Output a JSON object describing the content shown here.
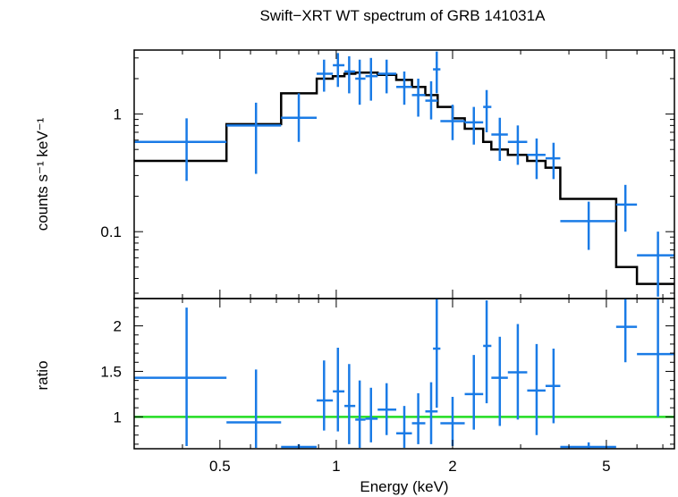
{
  "chart_data": [
    {
      "type": "scatter",
      "title": "Swift−XRT WT spectrum of GRB 141031A",
      "xlabel": "",
      "ylabel": "counts s⁻¹ keV⁻¹",
      "xscale": "log",
      "yscale": "log",
      "xlim": [
        0.3,
        7.5
      ],
      "ylim": [
        0.027,
        3.5
      ],
      "y_ticks": [
        0.1,
        1
      ],
      "y_tick_labels": [
        "0.1",
        "1"
      ],
      "colors": {
        "data": "#1a7be6",
        "model": "#000000"
      },
      "series": [
        {
          "style": "errorbar",
          "points": [
            {
              "x": 0.41,
              "xlo": 0.3,
              "xhi": 0.52,
              "y": 0.58,
              "ylo": 0.27,
              "yhi": 0.92
            },
            {
              "x": 0.62,
              "xlo": 0.52,
              "xhi": 0.72,
              "y": 0.8,
              "ylo": 0.31,
              "yhi": 1.25
            },
            {
              "x": 0.8,
              "xlo": 0.72,
              "xhi": 0.89,
              "y": 0.93,
              "ylo": 0.58,
              "yhi": 1.5
            },
            {
              "x": 0.93,
              "xlo": 0.89,
              "xhi": 0.98,
              "y": 2.2,
              "ylo": 1.55,
              "yhi": 2.9
            },
            {
              "x": 1.01,
              "xlo": 0.98,
              "xhi": 1.05,
              "y": 2.6,
              "ylo": 1.7,
              "yhi": 3.3
            },
            {
              "x": 1.08,
              "xlo": 1.05,
              "xhi": 1.12,
              "y": 2.3,
              "ylo": 1.5,
              "yhi": 3.1
            },
            {
              "x": 1.15,
              "xlo": 1.12,
              "xhi": 1.19,
              "y": 2.0,
              "ylo": 1.2,
              "yhi": 2.9
            },
            {
              "x": 1.23,
              "xlo": 1.19,
              "xhi": 1.28,
              "y": 2.1,
              "ylo": 1.3,
              "yhi": 3.0
            },
            {
              "x": 1.35,
              "xlo": 1.28,
              "xhi": 1.43,
              "y": 2.2,
              "ylo": 1.5,
              "yhi": 2.9
            },
            {
              "x": 1.5,
              "xlo": 1.43,
              "xhi": 1.57,
              "y": 1.7,
              "ylo": 1.2,
              "yhi": 2.3
            },
            {
              "x": 1.63,
              "xlo": 1.57,
              "xhi": 1.7,
              "y": 1.45,
              "ylo": 0.95,
              "yhi": 2.0
            },
            {
              "x": 1.76,
              "xlo": 1.7,
              "xhi": 1.83,
              "y": 1.3,
              "ylo": 0.9,
              "yhi": 1.9
            },
            {
              "x": 1.82,
              "xlo": 1.78,
              "xhi": 1.86,
              "y": 2.4,
              "ylo": 1.5,
              "yhi": 3.4
            },
            {
              "x": 2.0,
              "xlo": 1.86,
              "xhi": 2.15,
              "y": 0.87,
              "ylo": 0.6,
              "yhi": 1.2
            },
            {
              "x": 2.27,
              "xlo": 2.15,
              "xhi": 2.4,
              "y": 0.85,
              "ylo": 0.55,
              "yhi": 1.15
            },
            {
              "x": 2.45,
              "xlo": 2.4,
              "xhi": 2.52,
              "y": 1.15,
              "ylo": 0.7,
              "yhi": 1.6
            },
            {
              "x": 2.65,
              "xlo": 2.52,
              "xhi": 2.78,
              "y": 0.67,
              "ylo": 0.4,
              "yhi": 0.93
            },
            {
              "x": 2.95,
              "xlo": 2.78,
              "xhi": 3.12,
              "y": 0.58,
              "ylo": 0.37,
              "yhi": 0.8
            },
            {
              "x": 3.3,
              "xlo": 3.12,
              "xhi": 3.48,
              "y": 0.45,
              "ylo": 0.28,
              "yhi": 0.62
            },
            {
              "x": 3.65,
              "xlo": 3.48,
              "xhi": 3.8,
              "y": 0.42,
              "ylo": 0.28,
              "yhi": 0.57
            },
            {
              "x": 4.5,
              "xlo": 3.8,
              "xhi": 5.3,
              "y": 0.123,
              "ylo": 0.07,
              "yhi": 0.18
            },
            {
              "x": 5.6,
              "xlo": 5.3,
              "xhi": 6.0,
              "y": 0.17,
              "ylo": 0.1,
              "yhi": 0.25
            },
            {
              "x": 6.8,
              "xlo": 6.0,
              "xhi": 7.5,
              "y": 0.063,
              "ylo": 0.028,
              "yhi": 0.1
            }
          ]
        },
        {
          "style": "step",
          "edges": [
            0.3,
            0.52,
            0.72,
            0.89,
            0.98,
            1.05,
            1.12,
            1.19,
            1.28,
            1.43,
            1.57,
            1.7,
            1.83,
            2.0,
            2.15,
            2.4,
            2.52,
            2.78,
            3.12,
            3.48,
            3.8,
            5.3,
            6.0,
            7.5
          ],
          "values": [
            0.4,
            0.82,
            1.5,
            2.0,
            2.1,
            2.2,
            2.25,
            2.25,
            2.15,
            1.95,
            1.7,
            1.45,
            1.15,
            0.92,
            0.75,
            0.58,
            0.5,
            0.45,
            0.4,
            0.35,
            0.19,
            0.05,
            0.036
          ]
        }
      ]
    },
    {
      "type": "scatter",
      "xlabel": "Energy (keV)",
      "ylabel": "ratio",
      "xscale": "log",
      "yscale": "linear",
      "xlim": [
        0.3,
        7.5
      ],
      "ylim": [
        0.65,
        2.3
      ],
      "x_ticks": [
        0.5,
        1,
        2,
        5
      ],
      "x_tick_labels": [
        "0.5",
        "1",
        "2",
        "5"
      ],
      "y_ticks": [
        1,
        1.5,
        2
      ],
      "y_tick_labels": [
        "1",
        "1.5",
        "2"
      ],
      "reference_line": 1,
      "colors": {
        "data": "#1a7be6",
        "reference": "#22dd22"
      },
      "series": [
        {
          "style": "errorbar",
          "points": [
            {
              "x": 0.41,
              "xlo": 0.3,
              "xhi": 0.52,
              "y": 1.43,
              "ylo": 0.68,
              "yhi": 2.2
            },
            {
              "x": 0.62,
              "xlo": 0.52,
              "xhi": 0.72,
              "y": 0.94,
              "ylo": 0.66,
              "yhi": 1.52
            },
            {
              "x": 0.8,
              "xlo": 0.72,
              "xhi": 0.89,
              "y": 0.67,
              "ylo": 0.65,
              "yhi": 0.7
            },
            {
              "x": 0.93,
              "xlo": 0.89,
              "xhi": 0.98,
              "y": 1.18,
              "ylo": 0.85,
              "yhi": 1.62
            },
            {
              "x": 1.01,
              "xlo": 0.98,
              "xhi": 1.05,
              "y": 1.28,
              "ylo": 0.84,
              "yhi": 1.76
            },
            {
              "x": 1.08,
              "xlo": 1.05,
              "xhi": 1.12,
              "y": 1.12,
              "ylo": 0.7,
              "yhi": 1.58
            },
            {
              "x": 1.15,
              "xlo": 1.12,
              "xhi": 1.19,
              "y": 0.97,
              "ylo": 0.66,
              "yhi": 1.4
            },
            {
              "x": 1.23,
              "xlo": 1.19,
              "xhi": 1.28,
              "y": 0.98,
              "ylo": 0.72,
              "yhi": 1.32
            },
            {
              "x": 1.35,
              "xlo": 1.28,
              "xhi": 1.43,
              "y": 1.08,
              "ylo": 0.8,
              "yhi": 1.37
            },
            {
              "x": 1.5,
              "xlo": 1.43,
              "xhi": 1.57,
              "y": 0.82,
              "ylo": 0.66,
              "yhi": 1.12
            },
            {
              "x": 1.63,
              "xlo": 1.57,
              "xhi": 1.7,
              "y": 0.93,
              "ylo": 0.7,
              "yhi": 1.26
            },
            {
              "x": 1.76,
              "xlo": 1.7,
              "xhi": 1.83,
              "y": 1.06,
              "ylo": 0.7,
              "yhi": 1.38
            },
            {
              "x": 1.82,
              "xlo": 1.78,
              "xhi": 1.86,
              "y": 1.75,
              "ylo": 1.1,
              "yhi": 2.3
            },
            {
              "x": 2.0,
              "xlo": 1.86,
              "xhi": 2.15,
              "y": 0.93,
              "ylo": 0.68,
              "yhi": 1.22
            },
            {
              "x": 2.27,
              "xlo": 2.15,
              "xhi": 2.4,
              "y": 1.25,
              "ylo": 0.86,
              "yhi": 1.68
            },
            {
              "x": 2.45,
              "xlo": 2.4,
              "xhi": 2.52,
              "y": 1.78,
              "ylo": 1.15,
              "yhi": 2.28
            },
            {
              "x": 2.65,
              "xlo": 2.52,
              "xhi": 2.78,
              "y": 1.43,
              "ylo": 0.9,
              "yhi": 1.88
            },
            {
              "x": 2.95,
              "xlo": 2.78,
              "xhi": 3.12,
              "y": 1.49,
              "ylo": 0.97,
              "yhi": 2.02
            },
            {
              "x": 3.3,
              "xlo": 3.12,
              "xhi": 3.48,
              "y": 1.29,
              "ylo": 0.8,
              "yhi": 1.8
            },
            {
              "x": 3.65,
              "xlo": 3.48,
              "xhi": 3.8,
              "y": 1.34,
              "ylo": 0.93,
              "yhi": 1.75
            },
            {
              "x": 4.5,
              "xlo": 3.8,
              "xhi": 5.3,
              "y": 0.67,
              "ylo": 0.65,
              "yhi": 0.72
            },
            {
              "x": 5.6,
              "xlo": 5.3,
              "xhi": 6.0,
              "y": 1.99,
              "ylo": 1.6,
              "yhi": 2.3
            },
            {
              "x": 6.8,
              "xlo": 6.0,
              "xhi": 7.5,
              "y": 1.69,
              "ylo": 1.0,
              "yhi": 2.3
            }
          ]
        }
      ]
    }
  ]
}
